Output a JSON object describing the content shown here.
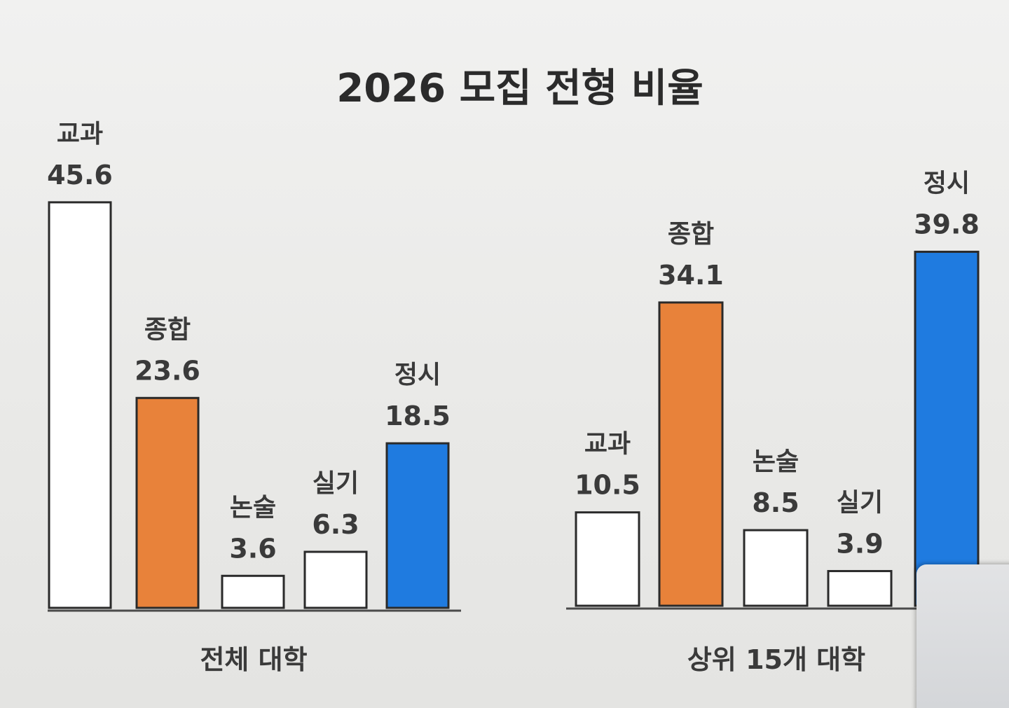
{
  "title": "2026 모집 전형 비율",
  "chart_data": [
    {
      "type": "bar",
      "group_label": "전체 대학",
      "categories": [
        "교과",
        "종합",
        "논술",
        "실기",
        "정시"
      ],
      "values": [
        45.6,
        23.6,
        3.6,
        6.3,
        18.5
      ],
      "value_labels": [
        "45.6",
        "23.6",
        "3.6",
        "6.3",
        "18.5"
      ],
      "colors": [
        "#ffffff",
        "#e8823a",
        "#ffffff",
        "#ffffff",
        "#1f7be0"
      ]
    },
    {
      "type": "bar",
      "group_label": "상위 15개 대학",
      "categories": [
        "교과",
        "종합",
        "논술",
        "실기",
        "정시"
      ],
      "values": [
        10.5,
        34.1,
        8.5,
        3.9,
        39.8
      ],
      "value_labels": [
        "10.5",
        "34.1",
        "8.5",
        "3.9",
        "39.8"
      ],
      "colors": [
        "#ffffff",
        "#e8823a",
        "#ffffff",
        "#ffffff",
        "#1f7be0"
      ]
    }
  ]
}
